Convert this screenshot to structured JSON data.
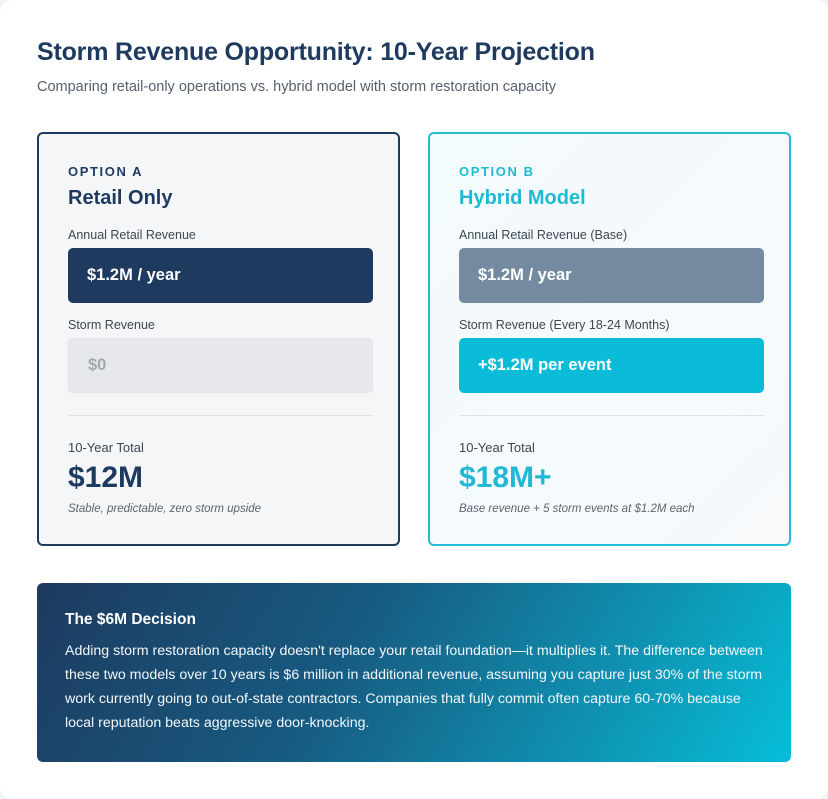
{
  "header": {
    "title": "Storm Revenue Opportunity: 10-Year Projection",
    "subtitle": "Comparing retail-only operations vs. hybrid model with storm restoration capacity"
  },
  "option_a": {
    "label": "OPTION A",
    "name": "Retail Only",
    "field1_label": "Annual Retail Revenue",
    "field1_value": "$1.2M / year",
    "field2_label": "Storm Revenue",
    "field2_value": "$0",
    "total_label": "10-Year Total",
    "total_value": "$12M",
    "note": "Stable, predictable, zero storm upside"
  },
  "option_b": {
    "label": "OPTION B",
    "name": "Hybrid Model",
    "field1_label": "Annual Retail Revenue (Base)",
    "field1_value": "$1.2M / year",
    "field2_label": "Storm Revenue (Every 18-24 Months)",
    "field2_value": "+$1.2M per event",
    "total_label": "10-Year Total",
    "total_value": "$18M+",
    "note": "Base revenue + 5 storm events at $1.2M each"
  },
  "decision": {
    "title": "The $6M Decision",
    "body": "Adding storm restoration capacity doesn't replace your retail foundation—it multiplies it. The difference between these two models over 10 years is $6 million in additional revenue, assuming you capture just 30% of the storm work currently going to out-of-state contractors. Companies that fully commit often capture 60-70% because local reputation beats aggressive door-knocking."
  },
  "colors": {
    "navy": "#1e3a5f",
    "cyan": "#1fb9d4",
    "slate": "#738aa1"
  }
}
